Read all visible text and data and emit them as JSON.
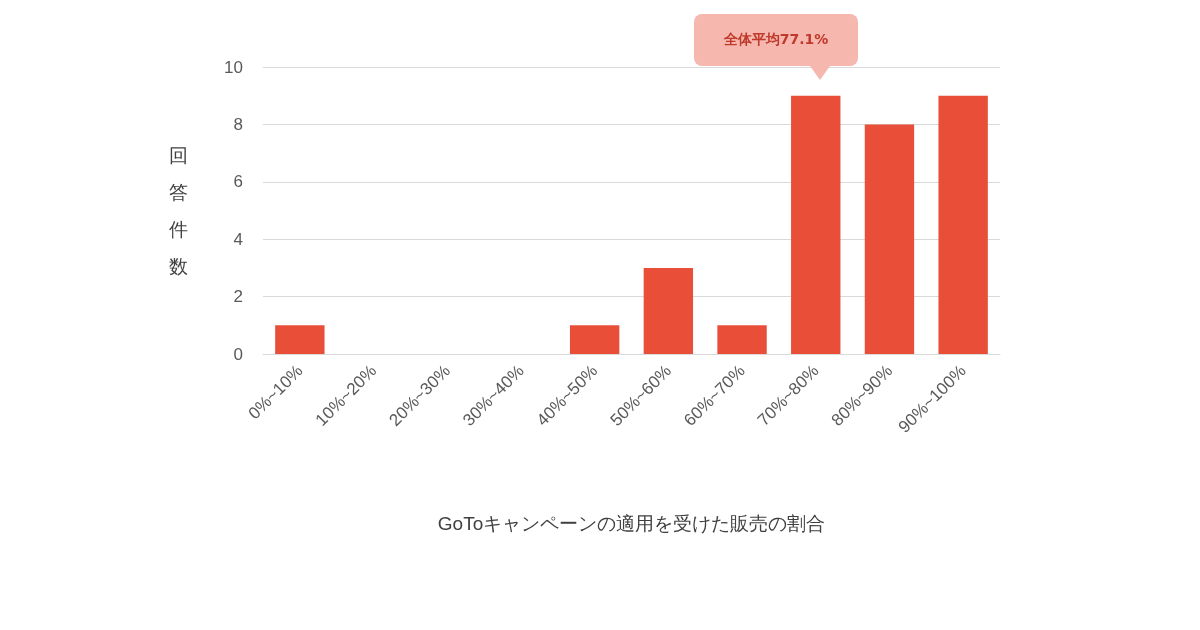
{
  "chart_data": {
    "type": "bar",
    "xlabel": "GoToキャンペーンの適用を受けた販売の割合",
    "ylabel": "回答件数",
    "categories": [
      "0%~10%",
      "10%~20%",
      "20%~30%",
      "30%~40%",
      "40%~50%",
      "50%~60%",
      "60%~70%",
      "70%~80%",
      "80%~90%",
      "90%~100%"
    ],
    "values": [
      1,
      0,
      0,
      0,
      1,
      3,
      1,
      9,
      8,
      9
    ],
    "color": "#e84e38",
    "ylim": [
      0,
      10
    ],
    "yticks": [
      0,
      2,
      4,
      6,
      8,
      10
    ],
    "grid": "y",
    "annotations": [
      "全体平均77.1%"
    ]
  }
}
